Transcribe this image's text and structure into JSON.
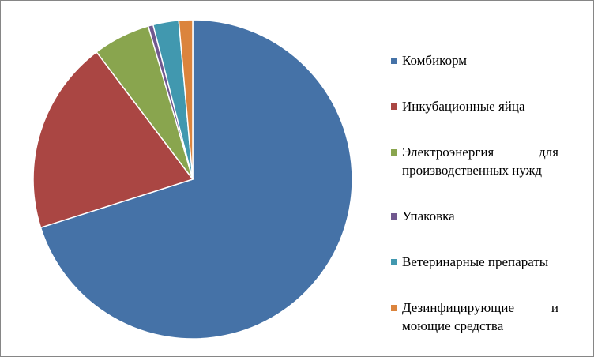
{
  "chart_data": {
    "type": "pie",
    "categories": [
      "Комбикорм",
      "Инкубационные яйца",
      "Электроэнергия для производственных нужд",
      "Упаковка",
      "Ветеринарные препараты",
      "Дезинфицирующие и моющие средства"
    ],
    "values": [
      70.1,
      19.6,
      5.8,
      0.5,
      2.6,
      1.4
    ],
    "colors": [
      "#4572a7",
      "#aa4643",
      "#89a54e",
      "#71588f",
      "#4198af",
      "#db843d"
    ],
    "legend": "right"
  }
}
